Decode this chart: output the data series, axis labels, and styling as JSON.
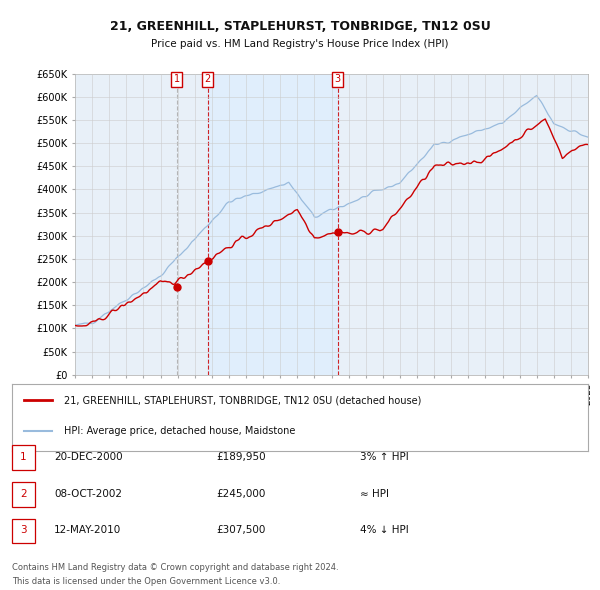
{
  "title": "21, GREENHILL, STAPLEHURST, TONBRIDGE, TN12 0SU",
  "subtitle": "Price paid vs. HM Land Registry's House Price Index (HPI)",
  "y_min": 0,
  "y_max": 650000,
  "y_ticks": [
    0,
    50000,
    100000,
    150000,
    200000,
    250000,
    300000,
    350000,
    400000,
    450000,
    500000,
    550000,
    600000,
    650000
  ],
  "y_tick_labels": [
    "£0",
    "£50K",
    "£100K",
    "£150K",
    "£200K",
    "£250K",
    "£300K",
    "£350K",
    "£400K",
    "£450K",
    "£500K",
    "£550K",
    "£600K",
    "£650K"
  ],
  "sale_dates": [
    2000.96,
    2002.77,
    2010.37
  ],
  "sale_prices": [
    189950,
    245000,
    307500
  ],
  "sale_labels": [
    "1",
    "2",
    "3"
  ],
  "sale_line_styles": [
    "--",
    "--",
    "--"
  ],
  "sale_line_colors": [
    "#aaaaaa",
    "#cc0000",
    "#cc0000"
  ],
  "shade_ranges": [
    [
      2002.77,
      2010.37
    ]
  ],
  "marker_color": "#cc0000",
  "hpi_color": "#99bbdd",
  "price_color": "#cc0000",
  "background_color": "#ffffff",
  "chart_bg": "#e8f0f8",
  "grid_color": "#cccccc",
  "legend_line1": "21, GREENHILL, STAPLEHURST, TONBRIDGE, TN12 0SU (detached house)",
  "legend_line2": "HPI: Average price, detached house, Maidstone",
  "table_rows": [
    {
      "label": "1",
      "date": "20-DEC-2000",
      "price": "£189,950",
      "relation": "3% ↑ HPI"
    },
    {
      "label": "2",
      "date": "08-OCT-2002",
      "price": "£245,000",
      "relation": "≈ HPI"
    },
    {
      "label": "3",
      "date": "12-MAY-2010",
      "price": "£307,500",
      "relation": "4% ↓ HPI"
    }
  ],
  "footnote1": "Contains HM Land Registry data © Crown copyright and database right 2024.",
  "footnote2": "This data is licensed under the Open Government Licence v3.0."
}
